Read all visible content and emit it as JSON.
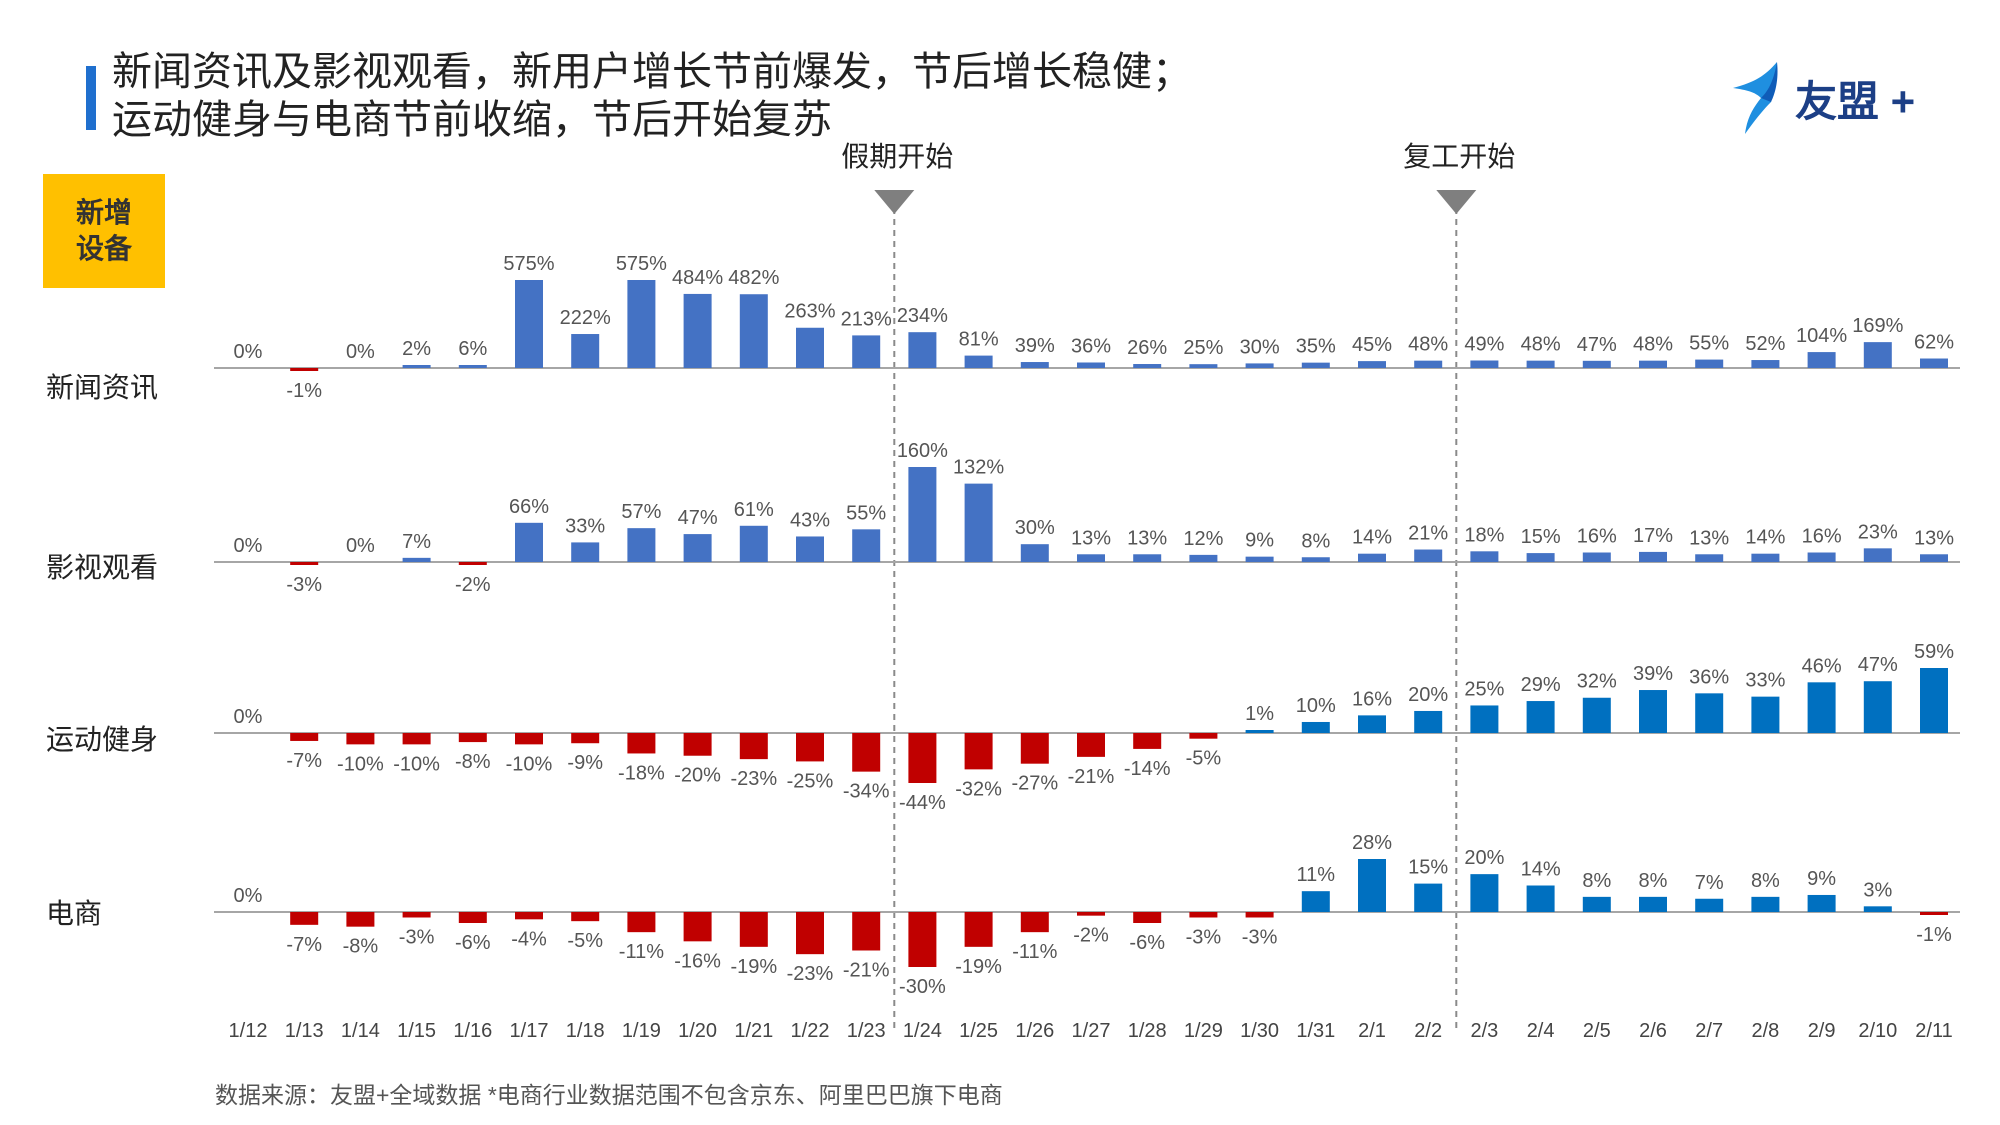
{
  "header": {
    "title_line1": "新闻资讯及影视观看，新用户增长节前爆发，节后增长稳健；",
    "title_line2": "运动健身与电商节前收缩，节后开始复苏"
  },
  "logo": {
    "text": "友盟 +",
    "icon": "bird-logo-icon"
  },
  "metric_badge": {
    "line1": "新增",
    "line2": "设备"
  },
  "rows": [
    {
      "label": "新闻资讯"
    },
    {
      "label": "影视观看"
    },
    {
      "label": "运动健身"
    },
    {
      "label": "电商"
    }
  ],
  "source": "数据来源：友盟+全域数据   *电商行业数据范围不包含京东、阿里巴巴旗下电商",
  "colors": {
    "blue_news": "#4472c4",
    "blue_growth": "#0070c0",
    "red": "#c00000",
    "accent": "#1f6fce",
    "badge": "#ffc000"
  },
  "chart_data": {
    "type": "bar",
    "title": "新增设备",
    "categories": [
      "1/12",
      "1/13",
      "1/14",
      "1/15",
      "1/16",
      "1/17",
      "1/18",
      "1/19",
      "1/20",
      "1/21",
      "1/22",
      "1/23",
      "1/24",
      "1/25",
      "1/26",
      "1/27",
      "1/28",
      "1/29",
      "1/30",
      "1/31",
      "2/1",
      "2/2",
      "2/3",
      "2/4",
      "2/5",
      "2/6",
      "2/7",
      "2/8",
      "2/9",
      "2/10",
      "2/11"
    ],
    "annotations": [
      {
        "text": "假期开始",
        "between": [
          "1/23",
          "1/24"
        ]
      },
      {
        "text": "复工开始",
        "between": [
          "2/2",
          "2/3"
        ]
      }
    ],
    "unit": "%",
    "series": [
      {
        "name": "新闻资讯",
        "values": [
          0,
          -1,
          0,
          2,
          6,
          575,
          222,
          575,
          484,
          482,
          263,
          213,
          234,
          81,
          39,
          36,
          26,
          25,
          30,
          35,
          45,
          48,
          49,
          48,
          47,
          48,
          55,
          52,
          104,
          169,
          62
        ]
      },
      {
        "name": "影视观看",
        "values": [
          0,
          -3,
          0,
          7,
          -2,
          66,
          33,
          57,
          47,
          61,
          43,
          55,
          160,
          132,
          30,
          13,
          13,
          12,
          9,
          8,
          14,
          21,
          18,
          15,
          16,
          17,
          13,
          14,
          16,
          23,
          13
        ]
      },
      {
        "name": "运动健身",
        "values": [
          0,
          -7,
          -10,
          -10,
          -8,
          -10,
          -9,
          -18,
          -20,
          -23,
          -25,
          -34,
          -44,
          -32,
          -27,
          -21,
          -14,
          -5,
          1,
          10,
          16,
          20,
          25,
          29,
          32,
          39,
          36,
          33,
          46,
          47,
          59
        ]
      },
      {
        "name": "电商",
        "values": [
          0,
          -7,
          -8,
          -3,
          -6,
          -4,
          -5,
          -11,
          -16,
          -19,
          -23,
          -21,
          -30,
          -19,
          -11,
          -2,
          -6,
          -3,
          -3,
          11,
          28,
          15,
          20,
          14,
          8,
          8,
          7,
          8,
          9,
          3,
          -1
        ]
      }
    ]
  }
}
